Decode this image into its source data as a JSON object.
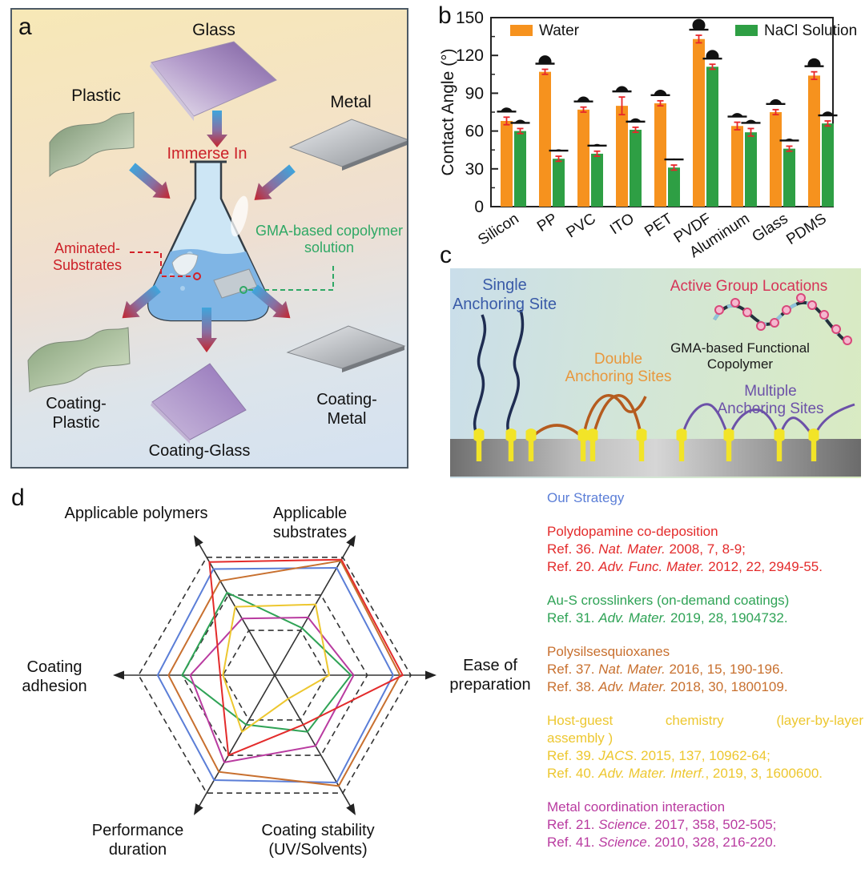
{
  "panel_a": {
    "label": "a",
    "plastic": "Plastic",
    "glass": "Glass",
    "metal": "Metal",
    "immerse_in": "Immerse In",
    "aminated_substrates": "Aminated-\nSubstrates",
    "gma_solution": "GMA-based copolymer\nsolution",
    "coating_plastic": "Coating-Plastic",
    "coating_glass": "Coating-Glass",
    "coating_metal": "Coating-Metal",
    "colors": {
      "red_label": "#cc2128",
      "green_label": "#2fa865"
    }
  },
  "panel_b": {
    "label": "b"
  },
  "panel_c": {
    "label": "c",
    "single_site": "Single\nAnchoring Site",
    "active_group": "Active Group Locations",
    "gma_copolymer": "GMA-based Functional Copolymer",
    "double_sites": "Double\nAnchoring Sites",
    "multiple_sites": "Multiple\nAnchoring Sites",
    "colors": {
      "single": "#3a5ba8",
      "active": "#d63457",
      "double": "#e8973c",
      "multiple": "#6c51a8"
    }
  },
  "panel_d": {
    "label": "d",
    "axis_labels": {
      "polymers": "Applicable polymers",
      "substrates": "Applicable substrates",
      "ease": "Ease of\npreparation",
      "stability": "Coating stability\n(UV/Solvents)",
      "duration": "Performance\nduration",
      "adhesion": "Coating\nadhesion"
    }
  },
  "chart_data": [
    {
      "type": "bar",
      "title": "",
      "xlabel": "",
      "ylabel": "Contact Angle (°)",
      "ylim": [
        0,
        150
      ],
      "yticks": [
        0,
        30,
        60,
        90,
        120,
        150
      ],
      "grid": false,
      "legend_position": "top-inside",
      "error_bar_color": "#e8262a",
      "droplet_color": "#111111",
      "categories": [
        "Silicon",
        "PP",
        "PVC",
        "ITO",
        "PET",
        "PVDF",
        "Aluminum",
        "Glass",
        "PDMS"
      ],
      "series": [
        {
          "name": "Water",
          "color": "#f6921e",
          "values": [
            68,
            107,
            77,
            80,
            82,
            133,
            64,
            75,
            104
          ],
          "errors": [
            3,
            2,
            2,
            7,
            2,
            3,
            3,
            2,
            3
          ]
        },
        {
          "name": "NaCl Solution",
          "color": "#2e9f44",
          "values": [
            60,
            38,
            42,
            61,
            31,
            111,
            59,
            46,
            66
          ],
          "errors": [
            2,
            2,
            2,
            2,
            2,
            2,
            3,
            2,
            2
          ]
        }
      ]
    },
    {
      "type": "radar",
      "scale_max": 5,
      "gridlines": [
        1.9,
        3.4,
        5
      ],
      "axes": [
        "Applicable polymers",
        "Applicable substrates",
        "Ease of preparation",
        "Coating stability (UV/Solvents)",
        "Performance duration",
        "Coating adhesion"
      ],
      "series": [
        {
          "name": "Our Strategy",
          "name_lines": [
            "Our Strategy"
          ],
          "color": "#5b7ed7",
          "values": [
            4.5,
            4.55,
            4.35,
            4.55,
            4.45,
            4.3
          ],
          "refs": []
        },
        {
          "name": "Polydopamine co-deposition",
          "name_lines": [
            "Polydopamine co-deposition"
          ],
          "color": "#e32b2b",
          "values": [
            4.8,
            4.9,
            4.7,
            2.1,
            3.4,
            2.0
          ],
          "refs": [
            "Ref. 36. *Nat. Mater.* 2008, 7, 8-9;",
            "Ref. 20. *Adv. Func. Mater.* 2012, 22, 2949-55."
          ]
        },
        {
          "name": "Au-S crosslinkers (on-demand coatings)",
          "name_lines": [
            "Au-S crosslinkers (on-demand coatings)"
          ],
          "color": "#2fa356",
          "values": [
            3.5,
            2.0,
            2.8,
            2.4,
            2.1,
            3.4
          ],
          "refs": [
            "Ref. 31. *Adv. Mater.* 2019, 28, 1904732."
          ]
        },
        {
          "name": "Polysilsesquioxanes",
          "name_lines": [
            "Polysilsesquioxanes"
          ],
          "color": "#c8702f",
          "values": [
            4.0,
            4.85,
            4.6,
            4.7,
            4.1,
            3.9
          ],
          "refs": [
            "Ref. 37. *Nat. Mater.* 2016, 15, 190-196.",
            "Ref. 38. *Adv. Mater.* 2018, 30, 1800109."
          ]
        },
        {
          "name": "Host-guest chemistry (layer-by-layer assembly )",
          "name_lines": [
            "Host-guest chemistry (layer-by-layer",
            "assembly )"
          ],
          "color": "#edc72f",
          "values": [
            2.9,
            3.0,
            2.0,
            1.0,
            2.4,
            1.9
          ],
          "refs": [
            "Ref. 39. *JACS*. 2015, 137, 10962-64;",
            "Ref. 40. *Adv. Mater. Interf.*, 2019, 3, 1600600."
          ]
        },
        {
          "name": "Metal coordination interaction",
          "name_lines": [
            "Metal coordination interaction"
          ],
          "color": "#b93ba0",
          "values": [
            2.4,
            2.45,
            2.9,
            3.0,
            3.7,
            3.1
          ],
          "refs": [
            "Ref. 21. *Science*. 2017, 358, 502-505;",
            "Ref. 41. *Science*. 2010, 328, 216-220."
          ]
        }
      ]
    }
  ]
}
